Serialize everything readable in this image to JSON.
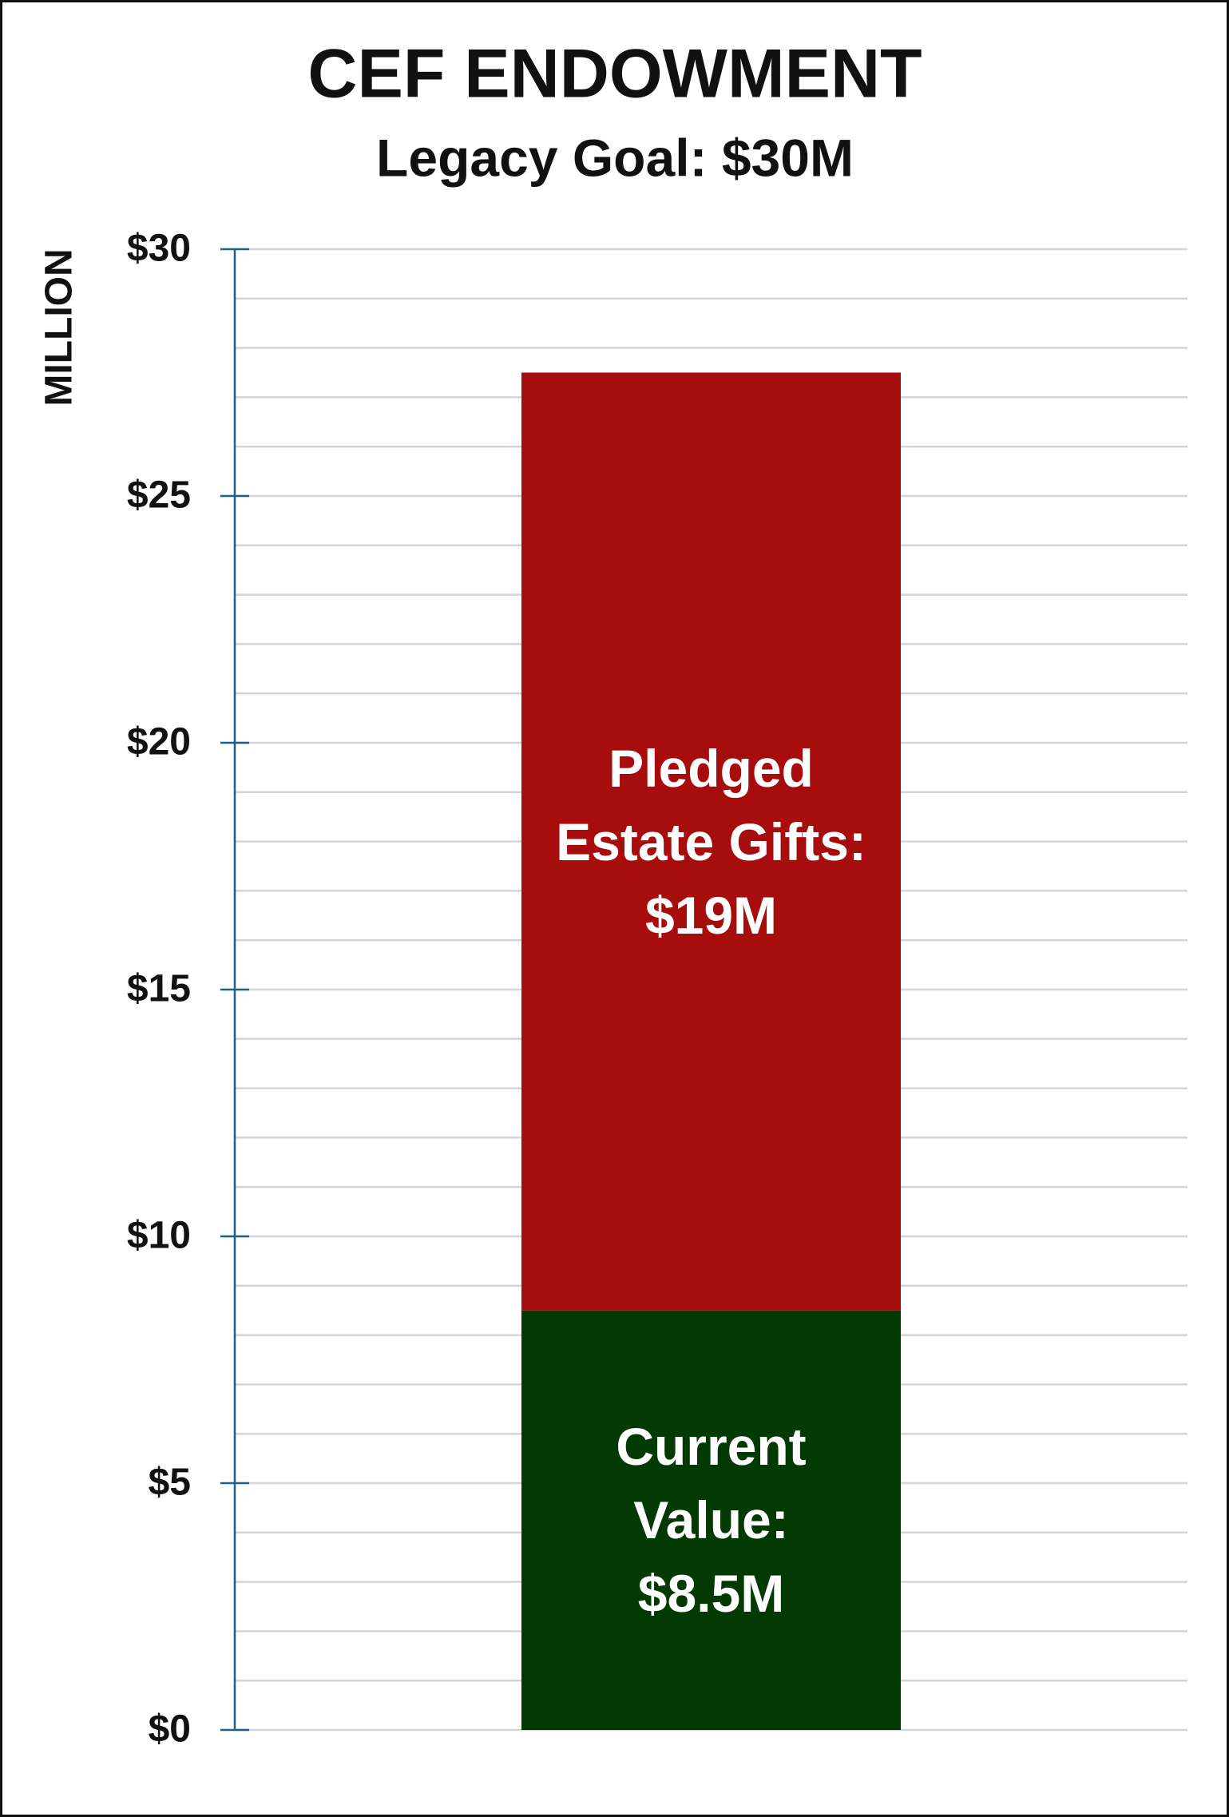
{
  "chart_data": {
    "type": "stacked_bar",
    "title": "CEF ENDOWMENT",
    "subtitle": "Legacy Goal: $30M",
    "y_label": "MILLION",
    "categories": [
      null
    ],
    "series": [
      {
        "name": "Current Value:",
        "color": "#033a03",
        "values": [
          8.5
        ],
        "value_labels": [
          "$8.5M"
        ]
      },
      {
        "name": "Pledged Estate Gifts:",
        "color": "#a80d0d",
        "values": [
          19
        ],
        "value_labels": [
          "$19M"
        ]
      }
    ],
    "ylim": [
      0,
      30
    ],
    "yticks": [
      {
        "value": 0,
        "label": "$0"
      },
      {
        "value": 5,
        "label": "$5"
      },
      {
        "value": 10,
        "label": "$10"
      },
      {
        "value": 15,
        "label": "$15"
      },
      {
        "value": 20,
        "label": "$20"
      },
      {
        "value": 25,
        "label": "$25"
      },
      {
        "value": 30,
        "label": "$30"
      }
    ],
    "grid_yticks": [
      0,
      1,
      2,
      3,
      4,
      5,
      6,
      7,
      8,
      9,
      10,
      11,
      12,
      13,
      14,
      15,
      16,
      17,
      18,
      19,
      20,
      21,
      22,
      23,
      24,
      25,
      26,
      27,
      28,
      29,
      30
    ],
    "grid": true
  }
}
